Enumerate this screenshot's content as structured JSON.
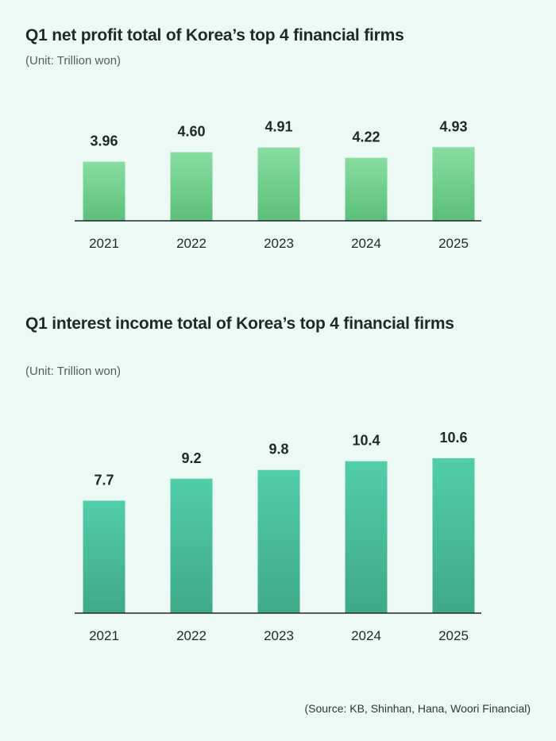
{
  "chart_data": [
    {
      "type": "bar",
      "title": "Q1 net profit total of Korea’s top 4 financial firms",
      "subtitle": "(Unit: Trillion won)",
      "categories": [
        "2021",
        "2022",
        "2023",
        "2024",
        "2025"
      ],
      "values": [
        3.96,
        4.6,
        4.91,
        4.22,
        4.93
      ],
      "value_labels": [
        "3.96",
        "4.60",
        "4.91",
        "4.22",
        "4.93"
      ],
      "ylim": [
        0,
        5
      ],
      "colors": {
        "top": "#86dea0",
        "bottom": "#5cbf7c"
      }
    },
    {
      "type": "bar",
      "title": "Q1 interest income total of Korea’s top 4 financial firms",
      "subtitle": "(Unit: Trillion won)",
      "categories": [
        "2021",
        "2022",
        "2023",
        "2024",
        "2025"
      ],
      "values": [
        7.7,
        9.2,
        9.8,
        10.4,
        10.6
      ],
      "value_labels": [
        "7.7",
        "9.2",
        "9.8",
        "10.4",
        "10.6"
      ],
      "ylim": [
        0,
        10.6
      ],
      "colors": {
        "top": "#52ceaa",
        "bottom": "#3fa988"
      }
    }
  ],
  "source": "(Source: KB, Shinhan, Hana, Woori Financial)"
}
